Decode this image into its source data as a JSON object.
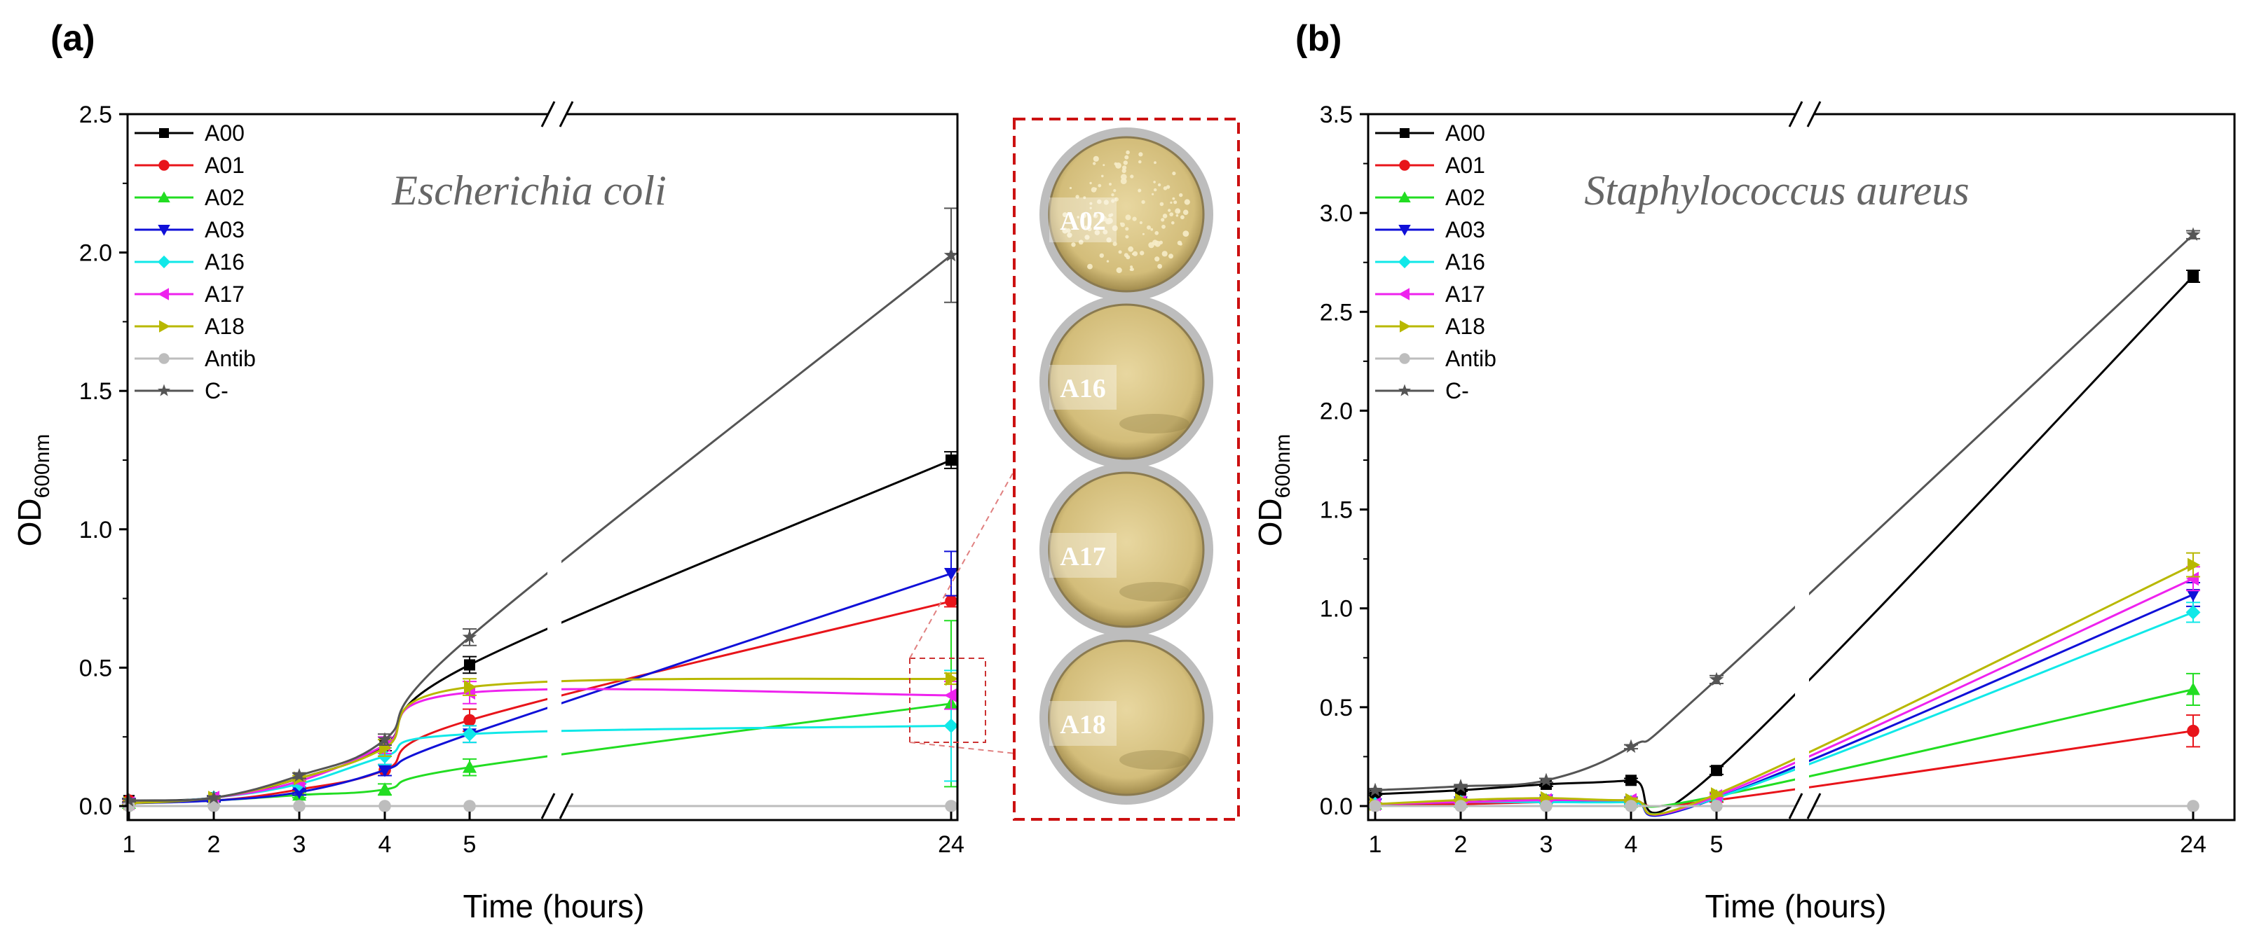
{
  "colors": {
    "A00": "#000000",
    "A01": "#e8141a",
    "A02": "#22dd22",
    "A03": "#1010d8",
    "A16": "#10e8e8",
    "A17": "#ee22ee",
    "A18": "#b8b800",
    "Antib": "#bdbdbd",
    "C-": "#555555",
    "inset_border": "#cc1111"
  },
  "markers": {
    "A00": "square",
    "A01": "circle",
    "A02": "triangle-up",
    "A03": "triangle-down",
    "A16": "diamond",
    "A17": "triangle-left",
    "A18": "triangle-right",
    "Antib": "circle",
    "C-": "star"
  },
  "chart_data": [
    {
      "panel": "(a)",
      "type": "line",
      "title": "Escherichia coli",
      "xlabel": "Time (hours)",
      "ylabel": "OD600nm",
      "ylabel_main": "OD",
      "ylabel_sub": "600nm",
      "x": [
        1,
        2,
        3,
        4,
        5,
        24
      ],
      "x_ticks": [
        "1",
        "2",
        "3",
        "4",
        "5",
        "24"
      ],
      "x_axis_break": "between 5 and 24",
      "ylim": [
        0,
        2.5
      ],
      "y_ticks": [
        "0.0",
        "0.5",
        "1.0",
        "1.5",
        "2.0",
        "2.5"
      ],
      "series": [
        {
          "name": "A00",
          "values": [
            0.02,
            0.03,
            0.1,
            0.22,
            0.51,
            1.25
          ],
          "errors": [
            0.005,
            0.005,
            0.01,
            0.02,
            0.03,
            0.03
          ]
        },
        {
          "name": "A01",
          "values": [
            0.02,
            0.02,
            0.06,
            0.13,
            0.31,
            0.74
          ],
          "errors": [
            0.005,
            0.005,
            0.01,
            0.02,
            0.04,
            0.02
          ]
        },
        {
          "name": "A02",
          "values": [
            0.01,
            0.02,
            0.04,
            0.06,
            0.14,
            0.37
          ],
          "errors": [
            0.005,
            0.005,
            0.01,
            0.02,
            0.03,
            0.3
          ]
        },
        {
          "name": "A03",
          "values": [
            0.01,
            0.02,
            0.05,
            0.13,
            0.26,
            0.84
          ],
          "errors": [
            0.005,
            0.005,
            0.01,
            0.02,
            0.03,
            0.08
          ]
        },
        {
          "name": "A16",
          "values": [
            0.01,
            0.03,
            0.08,
            0.18,
            0.26,
            0.29
          ],
          "errors": [
            0.005,
            0.005,
            0.01,
            0.03,
            0.03,
            0.2
          ]
        },
        {
          "name": "A17",
          "values": [
            0.01,
            0.03,
            0.09,
            0.22,
            0.41,
            0.4
          ],
          "errors": [
            0.005,
            0.005,
            0.01,
            0.03,
            0.04,
            0.05
          ]
        },
        {
          "name": "A18",
          "values": [
            0.01,
            0.03,
            0.1,
            0.21,
            0.43,
            0.46
          ],
          "errors": [
            0.005,
            0.005,
            0.01,
            0.03,
            0.03,
            0.02
          ]
        },
        {
          "name": "Antib",
          "values": [
            0.0,
            0.0,
            0.0,
            0.0,
            0.0,
            0.0
          ],
          "errors": [
            0,
            0,
            0,
            0,
            0,
            0
          ]
        },
        {
          "name": "C-",
          "values": [
            0.02,
            0.03,
            0.11,
            0.24,
            0.61,
            1.99
          ],
          "errors": [
            0.005,
            0.005,
            0.01,
            0.02,
            0.03,
            0.17
          ]
        }
      ],
      "inset": {
        "description": "Agar plate photographs",
        "plates": [
          "A02",
          "A16",
          "A17",
          "A18"
        ]
      }
    },
    {
      "panel": "(b)",
      "type": "line",
      "title": "Staphylococcus aureus",
      "xlabel": "Time (hours)",
      "ylabel": "OD600nm",
      "ylabel_main": "OD",
      "ylabel_sub": "600nm",
      "x": [
        1,
        2,
        3,
        4,
        5,
        24
      ],
      "x_ticks": [
        "1",
        "2",
        "3",
        "4",
        "5",
        "24"
      ],
      "x_axis_break": "between 5 and 24",
      "ylim": [
        0,
        3.5
      ],
      "y_ticks": [
        "0.0",
        "0.5",
        "1.0",
        "1.5",
        "2.0",
        "2.5",
        "3.0",
        "3.5"
      ],
      "series": [
        {
          "name": "A00",
          "values": [
            0.06,
            0.08,
            0.11,
            0.13,
            0.18,
            2.68
          ],
          "errors": [
            0.005,
            0.005,
            0.01,
            0.01,
            0.02,
            0.03
          ]
        },
        {
          "name": "A01",
          "values": [
            0.01,
            0.01,
            0.02,
            0.02,
            0.03,
            0.38
          ],
          "errors": [
            0.005,
            0.005,
            0.005,
            0.01,
            0.01,
            0.08
          ]
        },
        {
          "name": "A02",
          "values": [
            0.01,
            0.02,
            0.03,
            0.02,
            0.05,
            0.59
          ],
          "errors": [
            0.005,
            0.005,
            0.005,
            0.01,
            0.01,
            0.08
          ]
        },
        {
          "name": "A03",
          "values": [
            0.01,
            0.02,
            0.03,
            0.02,
            0.04,
            1.07
          ],
          "errors": [
            0.005,
            0.005,
            0.005,
            0.01,
            0.01,
            0.06
          ]
        },
        {
          "name": "A16",
          "values": [
            0.01,
            0.02,
            0.02,
            0.02,
            0.04,
            0.98
          ],
          "errors": [
            0.005,
            0.005,
            0.005,
            0.01,
            0.01,
            0.05
          ]
        },
        {
          "name": "A17",
          "values": [
            0.01,
            0.02,
            0.03,
            0.03,
            0.05,
            1.15
          ],
          "errors": [
            0.005,
            0.005,
            0.005,
            0.01,
            0.01,
            0.06
          ]
        },
        {
          "name": "A18",
          "values": [
            0.01,
            0.03,
            0.04,
            0.03,
            0.06,
            1.22
          ],
          "errors": [
            0.005,
            0.005,
            0.005,
            0.01,
            0.01,
            0.06
          ]
        },
        {
          "name": "Antib",
          "values": [
            0.0,
            0.0,
            0.0,
            0.0,
            0.0,
            0.0
          ],
          "errors": [
            0,
            0,
            0,
            0,
            0,
            0
          ]
        },
        {
          "name": "C-",
          "values": [
            0.08,
            0.1,
            0.13,
            0.3,
            0.64,
            2.89
          ],
          "errors": [
            0.005,
            0.005,
            0.01,
            0.01,
            0.02,
            0.02
          ]
        }
      ]
    }
  ]
}
